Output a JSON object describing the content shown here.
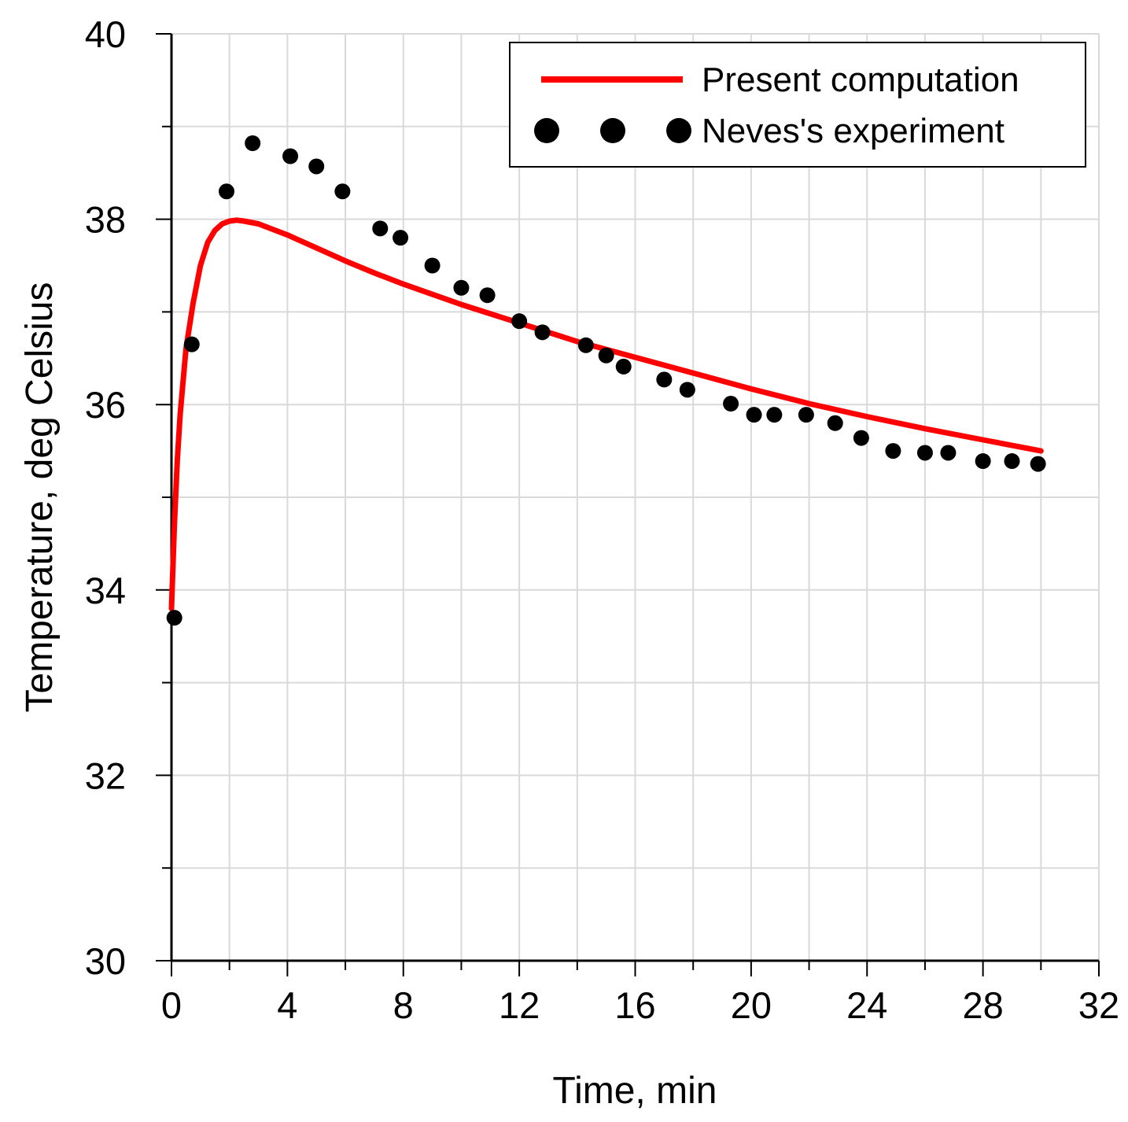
{
  "chart_data": {
    "type": "line",
    "title": "",
    "xlabel": "Time, min",
    "ylabel": "Temperature, deg Celsius",
    "xlim": [
      0,
      32
    ],
    "ylim": [
      30,
      40
    ],
    "x_ticks": [
      0,
      4,
      8,
      12,
      16,
      20,
      24,
      28,
      32
    ],
    "y_ticks": [
      30,
      32,
      34,
      36,
      38,
      40
    ],
    "x_grid_step": 2,
    "y_grid_step": 1,
    "grid": true,
    "legend_position": "top-right",
    "colors": {
      "computation": "#ff0000",
      "experiment": "#000000"
    },
    "series": [
      {
        "name": "Present computation",
        "style": "line",
        "x": [
          0,
          0.1,
          0.2,
          0.3,
          0.5,
          0.75,
          1.0,
          1.25,
          1.5,
          1.75,
          2.0,
          2.25,
          2.5,
          3,
          4,
          5,
          6,
          7,
          8,
          10,
          12,
          14,
          16,
          18,
          20,
          22,
          24,
          26,
          28,
          30
        ],
        "values": [
          33.8,
          34.7,
          35.4,
          35.9,
          36.6,
          37.1,
          37.5,
          37.75,
          37.88,
          37.95,
          37.98,
          37.99,
          37.98,
          37.95,
          37.83,
          37.69,
          37.55,
          37.42,
          37.3,
          37.08,
          36.88,
          36.68,
          36.51,
          36.34,
          36.17,
          36.01,
          35.87,
          35.74,
          35.62,
          35.5
        ]
      },
      {
        "name": "Neves's experiment",
        "style": "marker",
        "x": [
          0.1,
          0.7,
          1.9,
          2.8,
          4.1,
          5.0,
          5.9,
          7.2,
          7.9,
          9.0,
          10.0,
          10.9,
          12.0,
          12.8,
          14.3,
          15.0,
          15.6,
          17.0,
          17.8,
          19.3,
          20.1,
          20.8,
          21.9,
          22.9,
          23.8,
          24.9,
          26.0,
          26.8,
          28.0,
          29.0,
          29.9
        ],
        "values": [
          33.7,
          36.65,
          38.3,
          38.82,
          38.68,
          38.57,
          38.3,
          37.9,
          37.8,
          37.5,
          37.26,
          37.18,
          36.9,
          36.78,
          36.64,
          36.53,
          36.41,
          36.27,
          36.16,
          36.01,
          35.89,
          35.89,
          35.89,
          35.8,
          35.64,
          35.5,
          35.48,
          35.48,
          35.39,
          35.39,
          35.36
        ]
      }
    ]
  }
}
